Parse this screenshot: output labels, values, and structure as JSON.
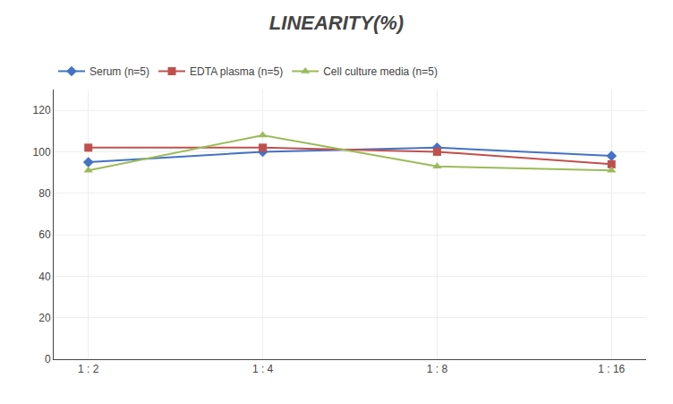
{
  "chart_data": {
    "type": "line",
    "title": "LINEARITY(%)",
    "categories": [
      "1 : 2",
      "1 : 4",
      "1 : 8",
      "1 : 16"
    ],
    "series": [
      {
        "name": "Serum (n=5)",
        "color": "#4472C4",
        "marker": "diamond",
        "values": [
          95,
          100,
          102,
          98
        ]
      },
      {
        "name": "EDTA plasma (n=5)",
        "color": "#C0504D",
        "marker": "square",
        "values": [
          102,
          102,
          100,
          94
        ]
      },
      {
        "name": "Cell culture media (n=5)",
        "color": "#9BBB59",
        "marker": "triangle-up",
        "values": [
          91,
          108,
          93,
          91
        ]
      }
    ],
    "ylim": [
      0,
      130
    ],
    "yticks": [
      0,
      20,
      40,
      60,
      80,
      100,
      120
    ],
    "grid": true,
    "legend": "top"
  }
}
